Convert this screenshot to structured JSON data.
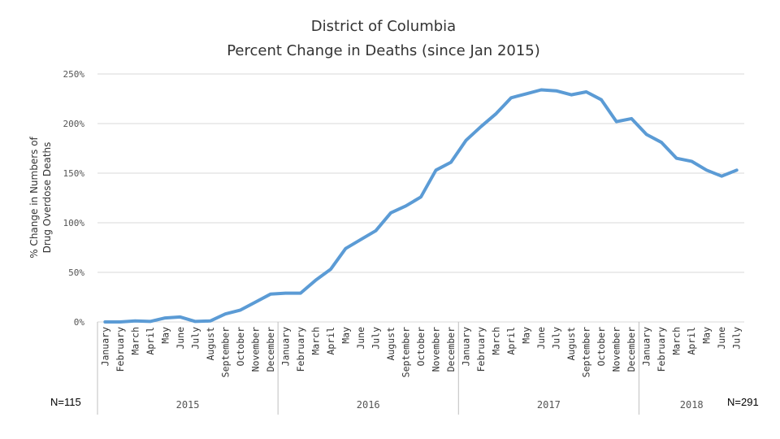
{
  "chart_data": {
    "type": "line",
    "title": [
      "District of Columbia",
      "Percent Change in Deaths (since Jan 2015)"
    ],
    "ylabel": [
      "% Change in Numbers of",
      "Drug Overdose Deaths"
    ],
    "xlabel": "",
    "ylim": [
      0,
      250
    ],
    "yticks": [
      0,
      50,
      100,
      150,
      200,
      250
    ],
    "ytick_labels": [
      "0%",
      "50%",
      "100%",
      "150%",
      "200%",
      "250%"
    ],
    "grid": true,
    "categories": [
      "January",
      "February",
      "March",
      "April",
      "May",
      "June",
      "July",
      "August",
      "September",
      "October",
      "November",
      "December",
      "January",
      "February",
      "March",
      "April",
      "May",
      "June",
      "July",
      "August",
      "September",
      "October",
      "November",
      "December",
      "January",
      "February",
      "March",
      "April",
      "May",
      "June",
      "July",
      "August",
      "September",
      "October",
      "November",
      "December",
      "January",
      "February",
      "March",
      "April",
      "May",
      "June",
      "July"
    ],
    "years": [
      {
        "label": "2015",
        "start": 0,
        "end": 11
      },
      {
        "label": "2016",
        "start": 12,
        "end": 23
      },
      {
        "label": "2017",
        "start": 24,
        "end": 35
      },
      {
        "label": "2018",
        "start": 36,
        "end": 42
      }
    ],
    "series": [
      {
        "name": "Percent Change in Deaths",
        "color": "#5b9bd5",
        "values": [
          0,
          0,
          1,
          0.5,
          4,
          5,
          0.5,
          1,
          8,
          12,
          20,
          28,
          29,
          29,
          42,
          53,
          74,
          83,
          92,
          110,
          117,
          126,
          153,
          161,
          183,
          197,
          210,
          226,
          230,
          234,
          233,
          229,
          232,
          224,
          202,
          205,
          189,
          181,
          165,
          162,
          153,
          147,
          153
        ]
      }
    ],
    "annotations": {
      "start": "N=115",
      "end": "N=291"
    }
  }
}
